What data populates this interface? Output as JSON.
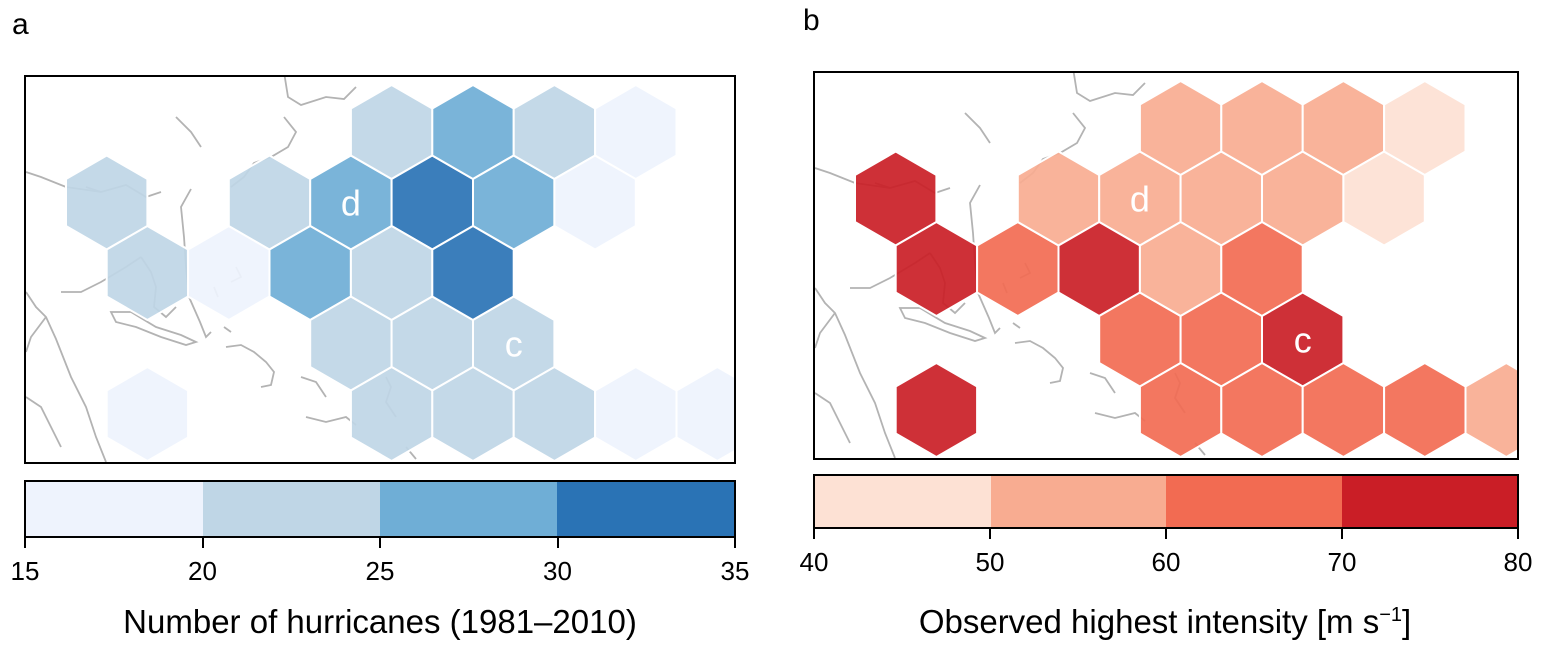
{
  "panels": [
    {
      "label": "a",
      "colorbar": {
        "title": "Number of hurricanes (1981–2010)",
        "ticks": [
          "15",
          "20",
          "25",
          "30",
          "35"
        ],
        "bins": [
          [
            15,
            20
          ],
          [
            20,
            25
          ],
          [
            25,
            30
          ],
          [
            30,
            35
          ]
        ],
        "colors": [
          "#eef3fd",
          "#bfd6e6",
          "#6faed6",
          "#2a73b5"
        ]
      },
      "hex_cells": [
        {
          "col": 0,
          "row": 1,
          "bin": 1
        },
        {
          "col": 1,
          "row": 2,
          "bin": 1
        },
        {
          "col": 2,
          "row": 2,
          "bin": 0
        },
        {
          "col": 1,
          "row": 4,
          "bin": 0
        },
        {
          "col": 2,
          "row": 1,
          "bin": 1
        },
        {
          "col": 3,
          "row": 1,
          "bin": 2,
          "label": "d"
        },
        {
          "col": 3,
          "row": 2,
          "bin": 2
        },
        {
          "col": 3,
          "row": 3,
          "bin": 1
        },
        {
          "col": 4,
          "row": 0,
          "bin": 1
        },
        {
          "col": 4,
          "row": 1,
          "bin": 3
        },
        {
          "col": 4,
          "row": 2,
          "bin": 1
        },
        {
          "col": 4,
          "row": 3,
          "bin": 1
        },
        {
          "col": 4,
          "row": 4,
          "bin": 1
        },
        {
          "col": 5,
          "row": 0,
          "bin": 2
        },
        {
          "col": 5,
          "row": 1,
          "bin": 2
        },
        {
          "col": 5,
          "row": 2,
          "bin": 3
        },
        {
          "col": 5,
          "row": 3,
          "bin": 1,
          "label": "c"
        },
        {
          "col": 5,
          "row": 4,
          "bin": 1
        },
        {
          "col": 6,
          "row": 0,
          "bin": 1
        },
        {
          "col": 6,
          "row": 1,
          "bin": 0
        },
        {
          "col": 6,
          "row": 4,
          "bin": 1
        },
        {
          "col": 7,
          "row": 0,
          "bin": 0
        },
        {
          "col": 7,
          "row": 4,
          "bin": 0
        },
        {
          "col": 8,
          "row": 4,
          "bin": 0
        }
      ]
    },
    {
      "label": "b",
      "colorbar": {
        "title": "Observed highest intensity [m s",
        "title_sup": "−1",
        "title_end": "]",
        "ticks": [
          "40",
          "50",
          "60",
          "70",
          "80"
        ],
        "bins": [
          [
            40,
            50
          ],
          [
            50,
            60
          ],
          [
            60,
            70
          ],
          [
            70,
            80
          ]
        ],
        "colors": [
          "#fde1d4",
          "#f8ac91",
          "#f26b52",
          "#ca1e26"
        ]
      },
      "hex_cells": [
        {
          "col": 0,
          "row": 1,
          "bin": 3
        },
        {
          "col": 1,
          "row": 2,
          "bin": 3
        },
        {
          "col": 2,
          "row": 2,
          "bin": 2
        },
        {
          "col": 1,
          "row": 4,
          "bin": 3
        },
        {
          "col": 2,
          "row": 1,
          "bin": 1
        },
        {
          "col": 3,
          "row": 1,
          "bin": 1,
          "label": "d"
        },
        {
          "col": 3,
          "row": 2,
          "bin": 3
        },
        {
          "col": 3,
          "row": 3,
          "bin": 2
        },
        {
          "col": 4,
          "row": 0,
          "bin": 1
        },
        {
          "col": 4,
          "row": 1,
          "bin": 1
        },
        {
          "col": 4,
          "row": 2,
          "bin": 1
        },
        {
          "col": 4,
          "row": 3,
          "bin": 2
        },
        {
          "col": 4,
          "row": 4,
          "bin": 2
        },
        {
          "col": 5,
          "row": 0,
          "bin": 1
        },
        {
          "col": 5,
          "row": 1,
          "bin": 1
        },
        {
          "col": 5,
          "row": 2,
          "bin": 2
        },
        {
          "col": 5,
          "row": 3,
          "bin": 3,
          "label": "c"
        },
        {
          "col": 5,
          "row": 4,
          "bin": 2
        },
        {
          "col": 6,
          "row": 0,
          "bin": 1
        },
        {
          "col": 6,
          "row": 1,
          "bin": 0
        },
        {
          "col": 6,
          "row": 4,
          "bin": 2
        },
        {
          "col": 7,
          "row": 0,
          "bin": 0
        },
        {
          "col": 7,
          "row": 4,
          "bin": 2
        },
        {
          "col": 8,
          "row": 4,
          "bin": 1
        }
      ]
    }
  ],
  "cell_label_color": "#ffffff",
  "coastline_color": "#b3b3b3"
}
